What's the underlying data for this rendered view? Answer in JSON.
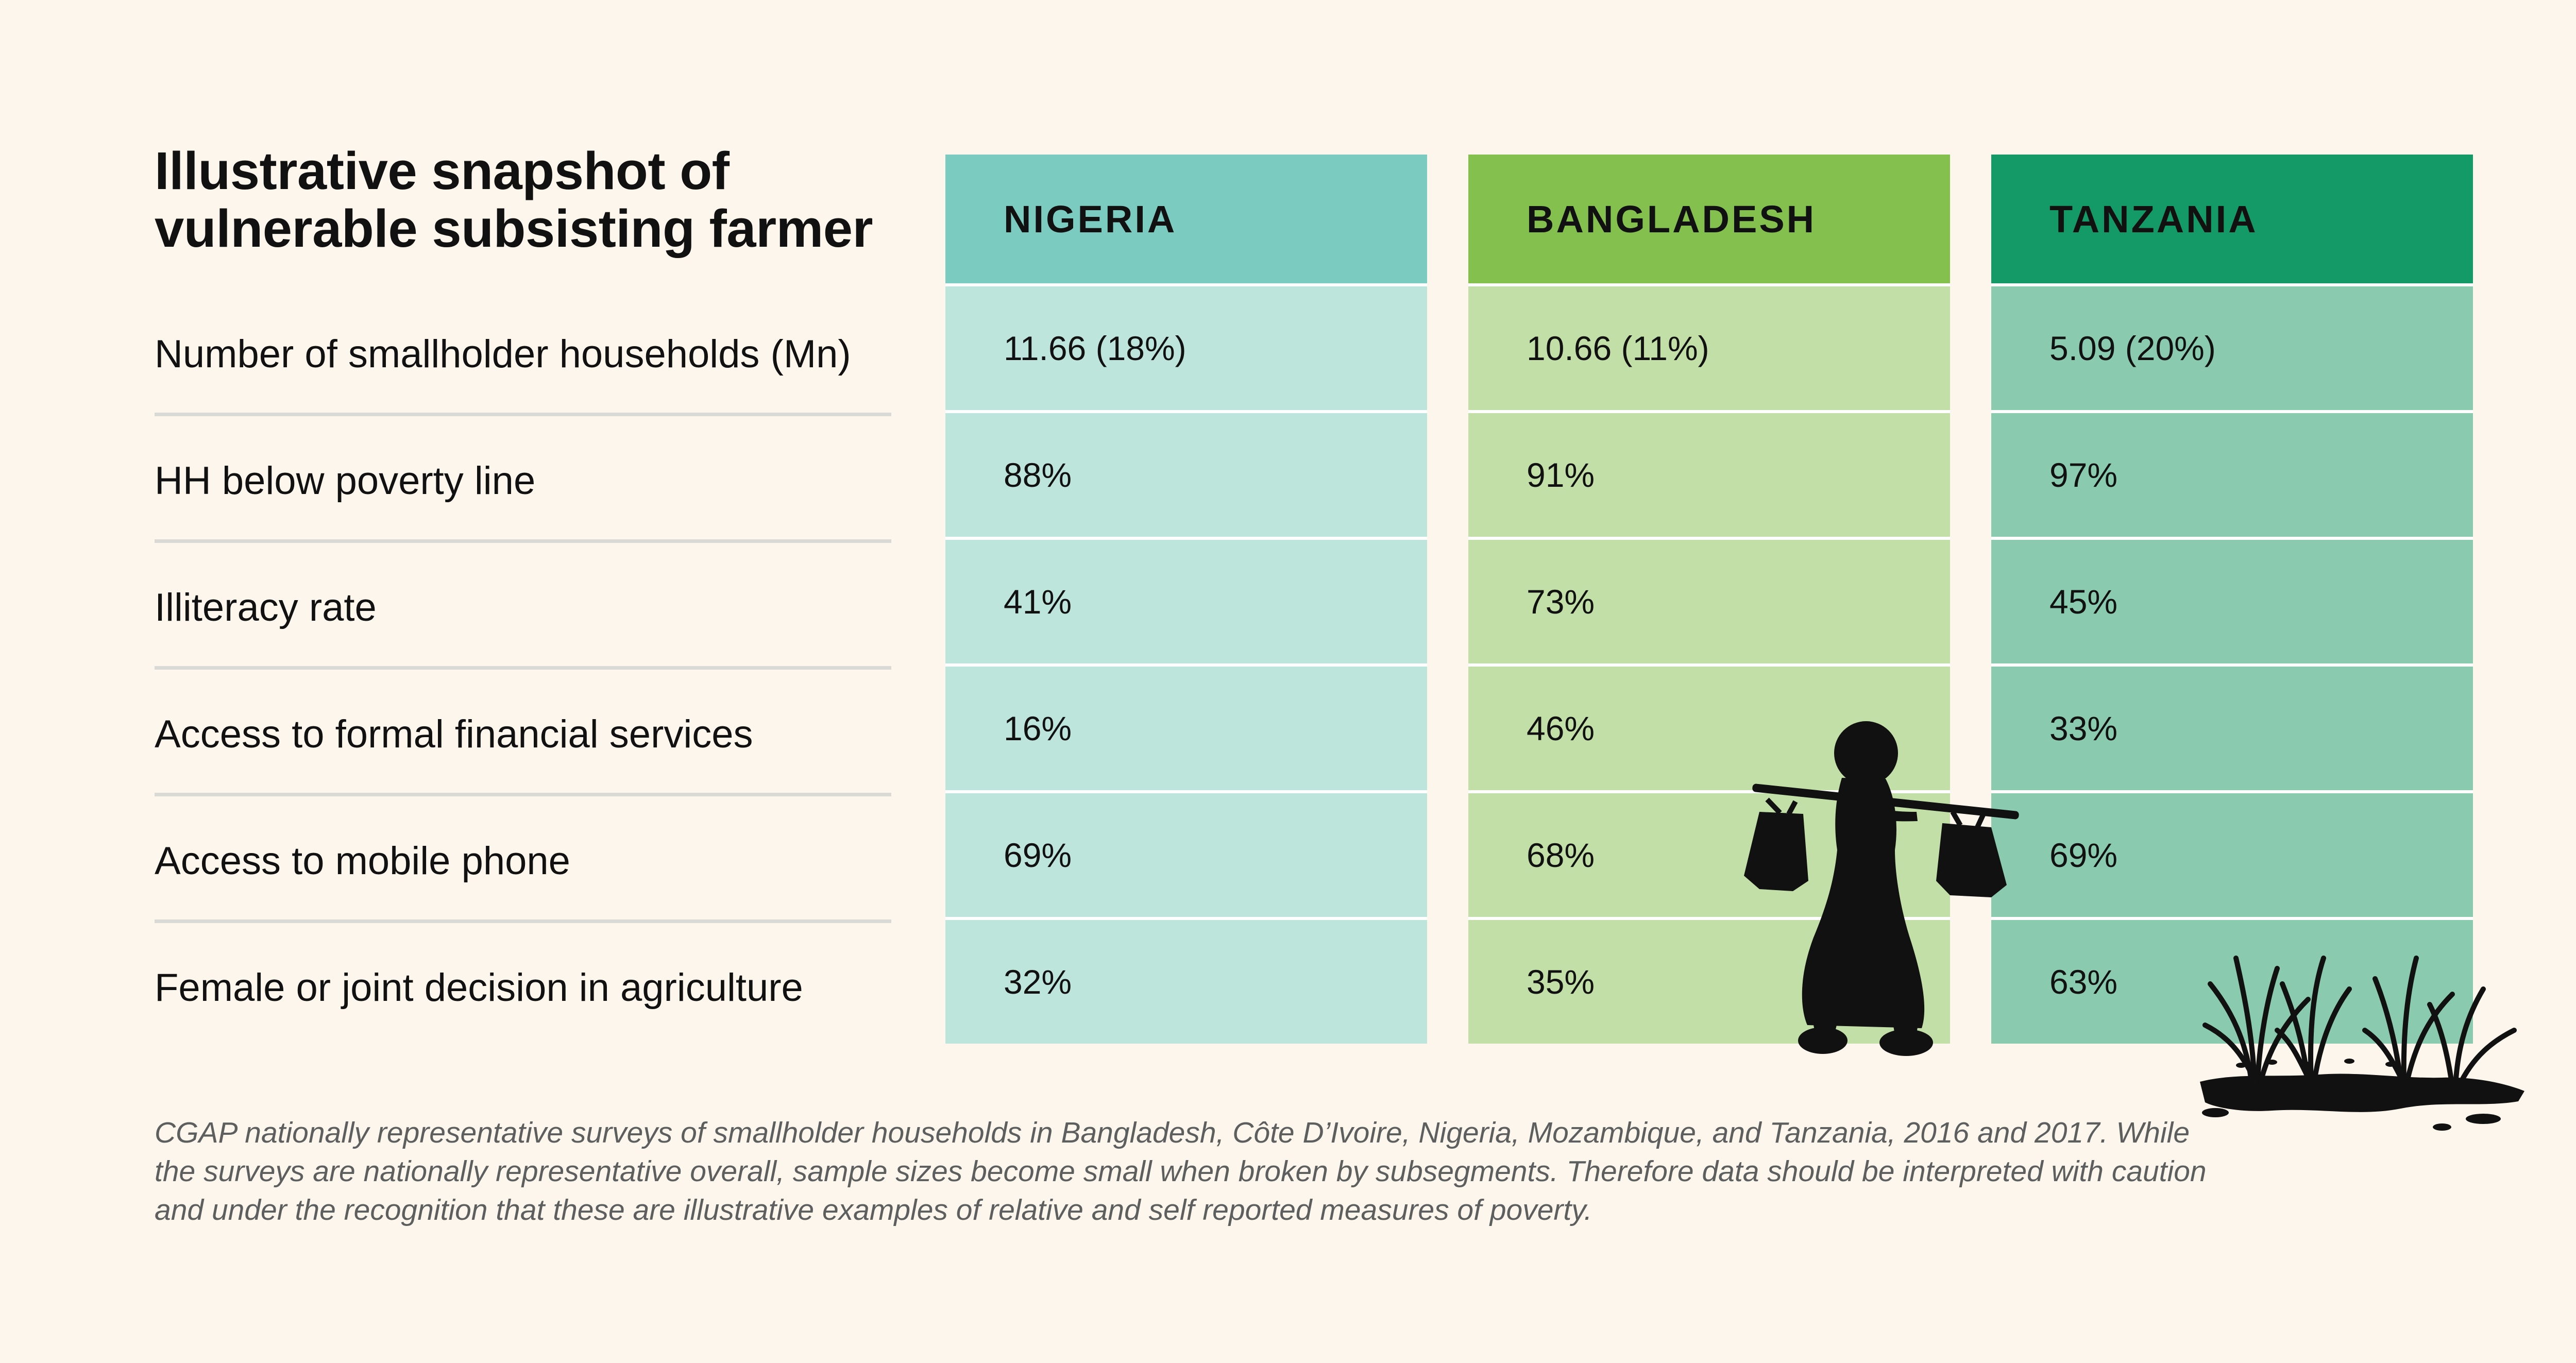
{
  "title": {
    "line1": "Illustrative snapshot of",
    "line2": "vulnerable subsisting farmer"
  },
  "rows": [
    "Number of smallholder households (Mn)",
    "HH below poverty line",
    "Illiteracy rate",
    "Access to formal financial services",
    "Access to mobile phone",
    "Female or joint decision in agriculture"
  ],
  "countries": [
    {
      "name": "NIGERIA",
      "header_color": "#7bcbc0",
      "cell_color": "#bde5db",
      "values": [
        "11.66 (18%)",
        "88%",
        "41%",
        "16%",
        "69%",
        "32%"
      ]
    },
    {
      "name": "BANGLADESH",
      "header_color": "#83c04e",
      "cell_color": "#c1dfa7",
      "values": [
        "10.66 (11%)",
        "91%",
        "73%",
        "46%",
        "68%",
        "35%"
      ]
    },
    {
      "name": "TANZANIA",
      "header_color": "#149a66",
      "cell_color": "#8acbb0",
      "values": [
        "5.09 (20%)",
        "97%",
        "45%",
        "33%",
        "69%",
        "63%"
      ]
    }
  ],
  "footnote": "CGAP nationally representative surveys of smallholder households in Bangladesh, Côte D’Ivoire, Nigeria, Mozambique, and Tanzania, 2016 and 2017. While the surveys are nationally representative overall, sample sizes become small when broken by subsegments. Therefore data should be interpreted with caution and under the recognition that these are illustrative examples of relative and self reported measures of poverty.",
  "illustrations": {
    "figure": "farmer-carrying-baskets-silhouette",
    "plants": "rice-plants-silhouette"
  }
}
